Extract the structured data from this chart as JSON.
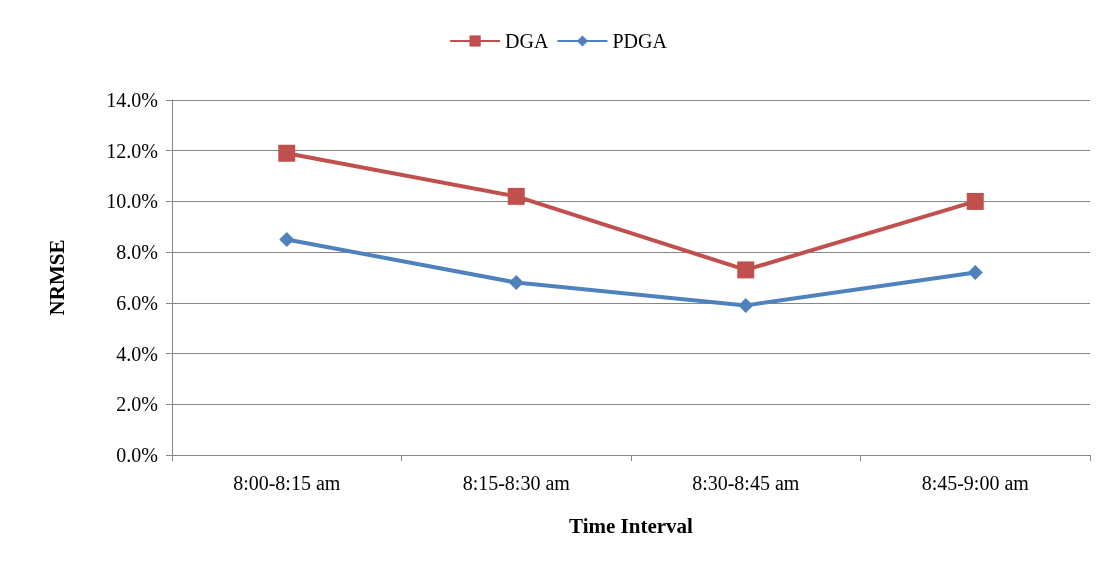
{
  "chart_data": {
    "type": "line",
    "xlabel": "Time Interval",
    "ylabel": "NRMSE",
    "categories": [
      "8:00-8:15 am",
      "8:15-8:30 am",
      "8:30-8:45 am",
      "8:45-9:00 am"
    ],
    "series": [
      {
        "name": "DGA",
        "color": "#c0504d",
        "marker": "square",
        "values": [
          11.9,
          10.2,
          7.3,
          10.0
        ]
      },
      {
        "name": "PDGA",
        "color": "#4f81bd",
        "marker": "diamond",
        "values": [
          8.5,
          6.8,
          5.9,
          7.2
        ]
      }
    ],
    "ylim": [
      0,
      14
    ],
    "yticks": [
      {
        "value": 0,
        "label": "0.0%"
      },
      {
        "value": 2,
        "label": "2.0%"
      },
      {
        "value": 4,
        "label": "4.0%"
      },
      {
        "value": 6,
        "label": "6.0%"
      },
      {
        "value": 8,
        "label": "8.0%"
      },
      {
        "value": 10,
        "label": "10.0%"
      },
      {
        "value": 12,
        "label": "12.0%"
      },
      {
        "value": 14,
        "label": "14.0%"
      }
    ],
    "grid": "y",
    "legend": "top"
  }
}
